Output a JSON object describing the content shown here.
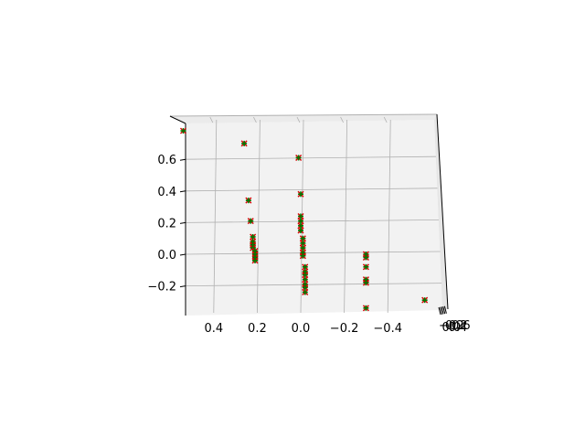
{
  "chart_data": {
    "type": "scatter",
    "projection": "3d",
    "title": "",
    "xlabel": "",
    "ylabel": "",
    "zlabel": "",
    "grid": true,
    "legend": "none",
    "x_ticks": [
      "0.4",
      "0.2",
      "0.0",
      "−0.2",
      "−0.4"
    ],
    "z_ticks": [
      "0.6",
      "0.4",
      "0.2",
      "0.0",
      "−0.2"
    ],
    "y_ticks": [
      "−0.2",
      "0.0",
      "0.2",
      "0.4",
      "0.6"
    ],
    "xlim": [
      -0.65,
      0.55
    ],
    "zlim": [
      -0.37,
      0.75
    ],
    "colors": {
      "pane": "#f2f2f2",
      "grid": "#b0b0b0",
      "marker_x": "#d40000",
      "marker_plus": "#007a00"
    },
    "series": [
      {
        "name": "",
        "marker": "x+",
        "points": [
          {
            "x": 0.54,
            "z": 0.78
          },
          {
            "x": 0.26,
            "z": 0.7
          },
          {
            "x": 0.01,
            "z": 0.61
          },
          {
            "x": 0.24,
            "z": 0.34
          },
          {
            "x": 0.23,
            "z": 0.21
          },
          {
            "x": 0.22,
            "z": 0.11
          },
          {
            "x": 0.22,
            "z": 0.08
          },
          {
            "x": 0.22,
            "z": 0.06
          },
          {
            "x": 0.22,
            "z": 0.04
          },
          {
            "x": 0.21,
            "z": 0.02
          },
          {
            "x": 0.21,
            "z": 0.0
          },
          {
            "x": 0.21,
            "z": -0.02
          },
          {
            "x": 0.21,
            "z": -0.04
          },
          {
            "x": 0.0,
            "z": 0.38
          },
          {
            "x": 0.0,
            "z": 0.24
          },
          {
            "x": 0.0,
            "z": 0.21
          },
          {
            "x": 0.0,
            "z": 0.18
          },
          {
            "x": 0.0,
            "z": 0.15
          },
          {
            "x": -0.01,
            "z": 0.1
          },
          {
            "x": -0.01,
            "z": 0.07
          },
          {
            "x": -0.01,
            "z": 0.04
          },
          {
            "x": -0.01,
            "z": 0.01
          },
          {
            "x": -0.01,
            "z": -0.01
          },
          {
            "x": -0.02,
            "z": -0.08
          },
          {
            "x": -0.02,
            "z": -0.11
          },
          {
            "x": -0.02,
            "z": -0.13
          },
          {
            "x": -0.02,
            "z": -0.16
          },
          {
            "x": -0.02,
            "z": -0.19
          },
          {
            "x": -0.02,
            "z": -0.21
          },
          {
            "x": -0.02,
            "z": -0.24
          },
          {
            "x": -0.3,
            "z": 0.0
          },
          {
            "x": -0.3,
            "z": -0.02
          },
          {
            "x": -0.3,
            "z": -0.08
          },
          {
            "x": -0.3,
            "z": -0.16
          },
          {
            "x": -0.3,
            "z": -0.18
          },
          {
            "x": -0.3,
            "z": -0.34
          },
          {
            "x": -0.57,
            "z": -0.29
          }
        ]
      }
    ]
  }
}
